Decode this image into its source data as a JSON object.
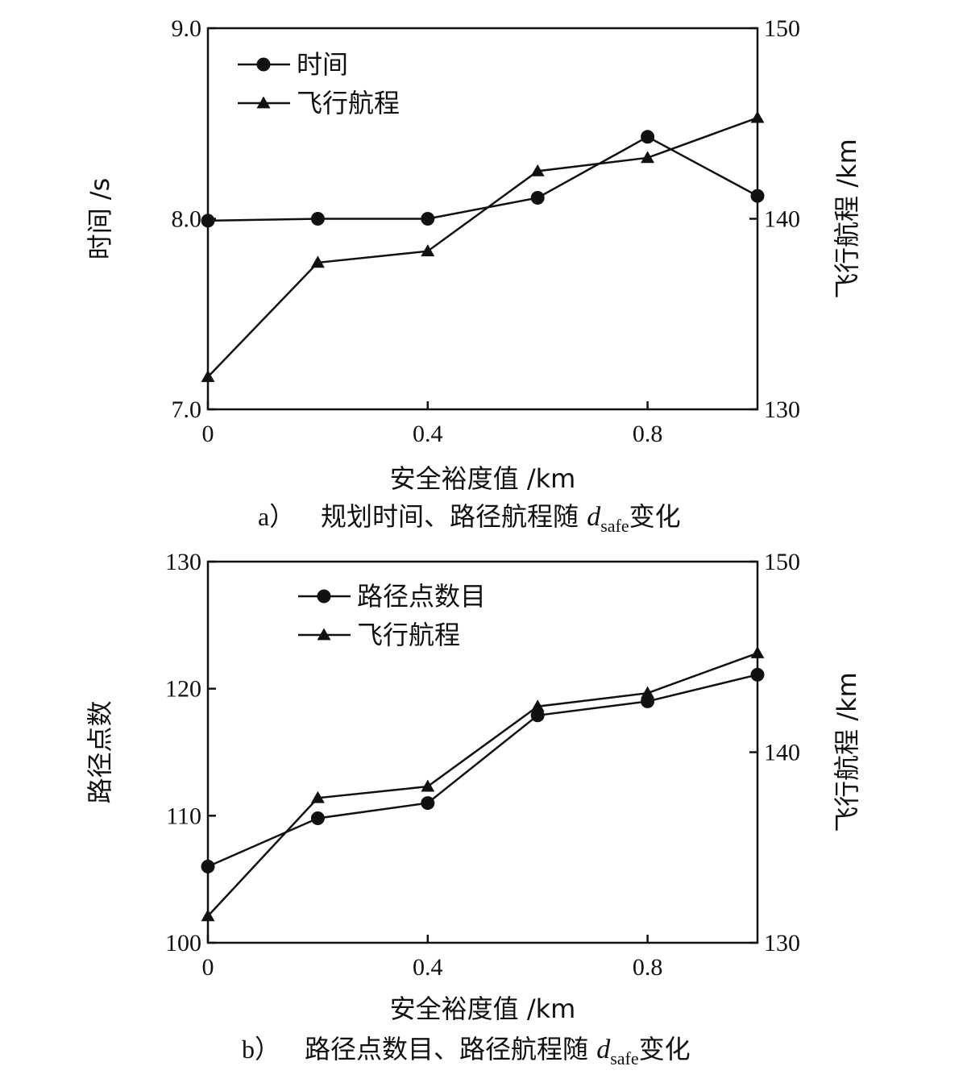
{
  "chart_data": [
    {
      "type": "line",
      "caption": {
        "label": "a）",
        "text_before": "规划时间、路径航程随 ",
        "symbol": "d",
        "subscript": "safe",
        "text_after": "变化"
      },
      "xlabel": "安全裕度值 /km",
      "xlim": [
        0,
        1.0
      ],
      "xticks": [
        0,
        0.4,
        0.8
      ],
      "xtick_labels": [
        "0",
        "0.4",
        "0.8"
      ],
      "left_axis": {
        "label": "时间 /s",
        "ylim": [
          7.0,
          9.0
        ],
        "ticks": [
          7.0,
          8.0,
          9.0
        ],
        "tick_labels": [
          "7.0",
          "8.0",
          "9.0"
        ]
      },
      "right_axis": {
        "label": "飞行航程 /km",
        "ylim": [
          130,
          150
        ],
        "ticks": [
          130,
          140,
          150
        ],
        "tick_labels": [
          "130",
          "140",
          "150"
        ]
      },
      "legend_position": "top-left",
      "series": [
        {
          "name": "时间",
          "marker": "circle",
          "axis": "left",
          "x": [
            0,
            0.2,
            0.4,
            0.6,
            0.8,
            1.0
          ],
          "values": [
            7.99,
            8.0,
            8.0,
            8.11,
            8.43,
            8.12
          ]
        },
        {
          "name": "飞行航程",
          "marker": "triangle",
          "axis": "right",
          "x": [
            0,
            0.2,
            0.4,
            0.6,
            0.8,
            1.0
          ],
          "values": [
            131.7,
            137.7,
            138.3,
            142.5,
            143.2,
            145.3
          ]
        }
      ],
      "grid": false
    },
    {
      "type": "line",
      "caption": {
        "label": "b）",
        "text_before": "路径点数目、路径航程随 ",
        "symbol": "d",
        "subscript": "safe",
        "text_after": "变化"
      },
      "xlabel": "安全裕度值 /km",
      "xlim": [
        0,
        1.0
      ],
      "xticks": [
        0,
        0.4,
        0.8
      ],
      "xtick_labels": [
        "0",
        "0.4",
        "0.8"
      ],
      "left_axis": {
        "label": "路径点数",
        "ylim": [
          100,
          130
        ],
        "ticks": [
          100,
          110,
          120,
          130
        ],
        "tick_labels": [
          "100",
          "110",
          "120",
          "130"
        ]
      },
      "right_axis": {
        "label": "飞行航程 /km",
        "ylim": [
          130,
          150
        ],
        "ticks": [
          130,
          140,
          150
        ],
        "tick_labels": [
          "130",
          "140",
          "150"
        ]
      },
      "legend_position": "top-center",
      "series": [
        {
          "name": "路径点数目",
          "marker": "circle",
          "axis": "left",
          "x": [
            0,
            0.2,
            0.4,
            0.6,
            0.8,
            1.0
          ],
          "values": [
            106,
            109.8,
            111,
            117.9,
            119,
            121.1
          ]
        },
        {
          "name": "飞行航程",
          "marker": "triangle",
          "axis": "right",
          "x": [
            0,
            0.2,
            0.4,
            0.6,
            0.8,
            1.0
          ],
          "values": [
            131.4,
            137.6,
            138.2,
            142.4,
            143.1,
            145.2
          ]
        }
      ],
      "grid": false
    }
  ]
}
